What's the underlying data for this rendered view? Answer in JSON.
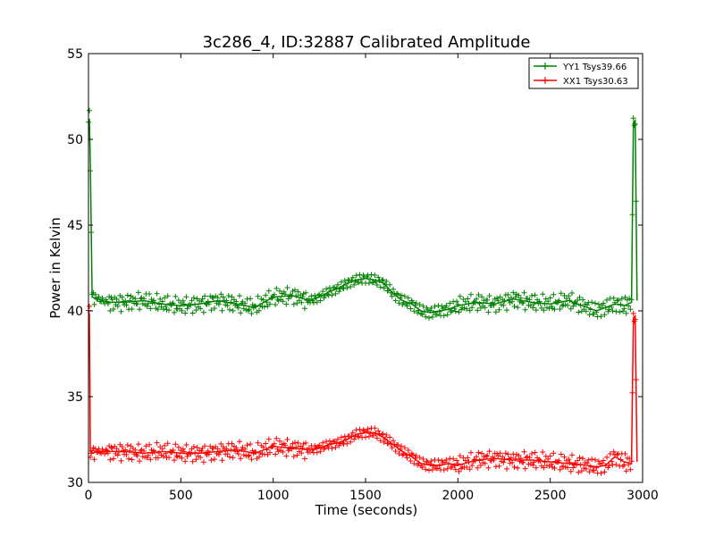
{
  "chart_data": {
    "type": "line",
    "title": "3c286_4, ID:32887 Calibrated Amplitude",
    "xlabel": "Time (seconds)",
    "ylabel": "Power in Kelvin",
    "xlim": [
      0,
      3000
    ],
    "ylim": [
      30,
      55
    ],
    "xticks": [
      0,
      500,
      1000,
      1500,
      2000,
      2500,
      3000
    ],
    "yticks": [
      30,
      35,
      40,
      45,
      50,
      55
    ],
    "grid": false,
    "legend_position": "top-right",
    "series": [
      {
        "name": "YY1 Tsys39.66",
        "color": "#008000",
        "marker": "+",
        "x": [
          0,
          5,
          10,
          20,
          50,
          100,
          200,
          300,
          400,
          500,
          600,
          700,
          800,
          900,
          1000,
          1100,
          1200,
          1250,
          1300,
          1350,
          1400,
          1450,
          1500,
          1550,
          1600,
          1650,
          1700,
          1750,
          1800,
          1850,
          1900,
          1950,
          2000,
          2100,
          2200,
          2300,
          2400,
          2500,
          2600,
          2700,
          2750,
          2800,
          2850,
          2900,
          2940,
          2950,
          2960,
          2970
        ],
        "y": [
          51.0,
          51.2,
          48.5,
          40.8,
          40.7,
          40.5,
          40.5,
          40.6,
          40.4,
          40.3,
          40.4,
          40.6,
          40.4,
          40.2,
          40.8,
          40.9,
          40.6,
          40.8,
          41.1,
          41.3,
          41.6,
          41.8,
          41.9,
          41.8,
          41.6,
          41.0,
          40.6,
          40.4,
          40.0,
          39.9,
          40.0,
          40.1,
          40.3,
          40.5,
          40.4,
          40.7,
          40.5,
          40.4,
          40.6,
          40.2,
          40.0,
          40.2,
          40.4,
          40.3,
          40.5,
          51.0,
          51.1,
          40.6
        ]
      },
      {
        "name": "XX1 Tsys30.63",
        "color": "#ff0000",
        "marker": "+",
        "x": [
          0,
          5,
          10,
          20,
          50,
          100,
          200,
          300,
          400,
          500,
          600,
          700,
          800,
          900,
          1000,
          1100,
          1200,
          1250,
          1300,
          1350,
          1400,
          1450,
          1500,
          1550,
          1600,
          1650,
          1700,
          1750,
          1800,
          1850,
          1900,
          1950,
          2000,
          2100,
          2200,
          2300,
          2400,
          2500,
          2600,
          2700,
          2750,
          2800,
          2850,
          2900,
          2940,
          2950,
          2960,
          2970
        ],
        "y": [
          40.0,
          39.8,
          31.8,
          31.7,
          31.8,
          31.8,
          31.8,
          31.7,
          31.8,
          31.7,
          31.7,
          31.8,
          31.9,
          31.7,
          32.1,
          32.0,
          31.9,
          32.0,
          32.2,
          32.3,
          32.5,
          32.8,
          32.9,
          32.9,
          32.6,
          32.2,
          31.8,
          31.5,
          31.1,
          31.0,
          31.0,
          31.1,
          31.0,
          31.3,
          31.4,
          31.3,
          31.3,
          31.2,
          31.1,
          31.0,
          30.9,
          31.0,
          31.5,
          31.2,
          31.1,
          39.6,
          39.7,
          31.2
        ]
      }
    ]
  }
}
